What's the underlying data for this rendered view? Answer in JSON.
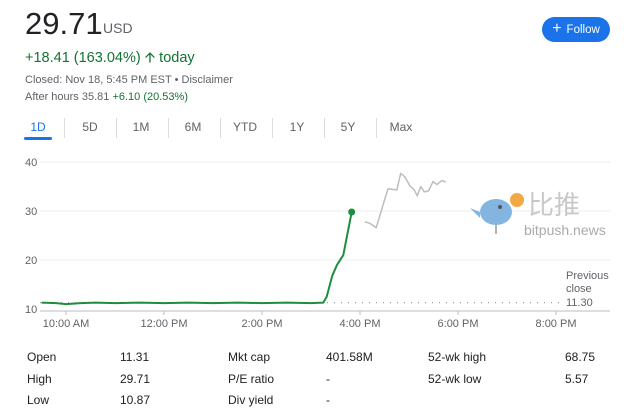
{
  "quote": {
    "price": "29.71",
    "currency": "USD",
    "change": "+18.41 (163.04%)",
    "change_arrow_icon": "arrow-up-icon",
    "change_period": "today",
    "closed_text": "Closed: Nov 18, 5:45 PM EST",
    "separator": " • ",
    "disclaimer": "Disclaimer",
    "after_hours_label": "After hours 35.81",
    "after_hours_change": "+6.10 (20.53%)"
  },
  "follow_button": {
    "label": "Follow",
    "icon": "plus-icon",
    "color": "#1a73e8"
  },
  "tabs": [
    {
      "label": "1D",
      "active": true
    },
    {
      "label": "5D"
    },
    {
      "label": "1M"
    },
    {
      "label": "6M"
    },
    {
      "label": "YTD"
    },
    {
      "label": "1Y"
    },
    {
      "label": "5Y"
    },
    {
      "label": "Max"
    }
  ],
  "chart_data": {
    "type": "line",
    "y_ticks": [
      "40",
      "30",
      "20",
      "10"
    ],
    "x_ticks": [
      "10:00 AM",
      "12:00 PM",
      "2:00 PM",
      "4:00 PM",
      "6:00 PM",
      "8:00 PM"
    ],
    "ylim": [
      10,
      40
    ],
    "xlim_hours": [
      9.5,
      21
    ],
    "grid": true,
    "previous_close": {
      "label_line1": "Previous",
      "label_line2": "close",
      "value": "11.30"
    },
    "series": [
      {
        "session": "regular",
        "color": "#1e8e3e",
        "points": [
          [
            9.5,
            11.3
          ],
          [
            9.8,
            11.2
          ],
          [
            10.0,
            11.0
          ],
          [
            10.3,
            11.2
          ],
          [
            10.6,
            11.3
          ],
          [
            11.0,
            11.2
          ],
          [
            11.5,
            11.3
          ],
          [
            12.0,
            11.2
          ],
          [
            12.5,
            11.3
          ],
          [
            13.0,
            11.2
          ],
          [
            13.5,
            11.3
          ],
          [
            14.0,
            11.2
          ],
          [
            14.5,
            11.3
          ],
          [
            15.0,
            11.2
          ],
          [
            15.25,
            11.3
          ],
          [
            15.32,
            12.5
          ],
          [
            15.43,
            16.7
          ],
          [
            15.53,
            19.0
          ],
          [
            15.66,
            21.0
          ],
          [
            15.83,
            29.8
          ]
        ]
      },
      {
        "session": "after-hours",
        "color": "#bdbdbd",
        "points": [
          [
            16.1,
            27.8
          ],
          [
            16.2,
            27.5
          ],
          [
            16.33,
            26.6
          ],
          [
            16.57,
            34.5
          ],
          [
            16.75,
            34.3
          ],
          [
            16.83,
            37.7
          ],
          [
            16.92,
            36.9
          ],
          [
            17.02,
            35.1
          ],
          [
            17.1,
            34.4
          ],
          [
            17.17,
            33.1
          ],
          [
            17.24,
            35.0
          ],
          [
            17.31,
            33.9
          ],
          [
            17.4,
            34.1
          ],
          [
            17.49,
            36.0
          ],
          [
            17.57,
            35.4
          ],
          [
            17.67,
            36.2
          ],
          [
            17.75,
            35.9
          ]
        ]
      }
    ]
  },
  "stats": [
    {
      "label": "Open",
      "value": "11.31"
    },
    {
      "label": "High",
      "value": "29.71"
    },
    {
      "label": "Low",
      "value": "10.87"
    },
    {
      "label": "Mkt cap",
      "value": "401.58M"
    },
    {
      "label": "P/E ratio",
      "value": "-"
    },
    {
      "label": "Div yield",
      "value": "-"
    },
    {
      "label": "52-wk high",
      "value": "68.75"
    },
    {
      "label": "52-wk low",
      "value": "5.57"
    }
  ],
  "watermark": {
    "text": "比推",
    "url": "bitpush.news"
  }
}
